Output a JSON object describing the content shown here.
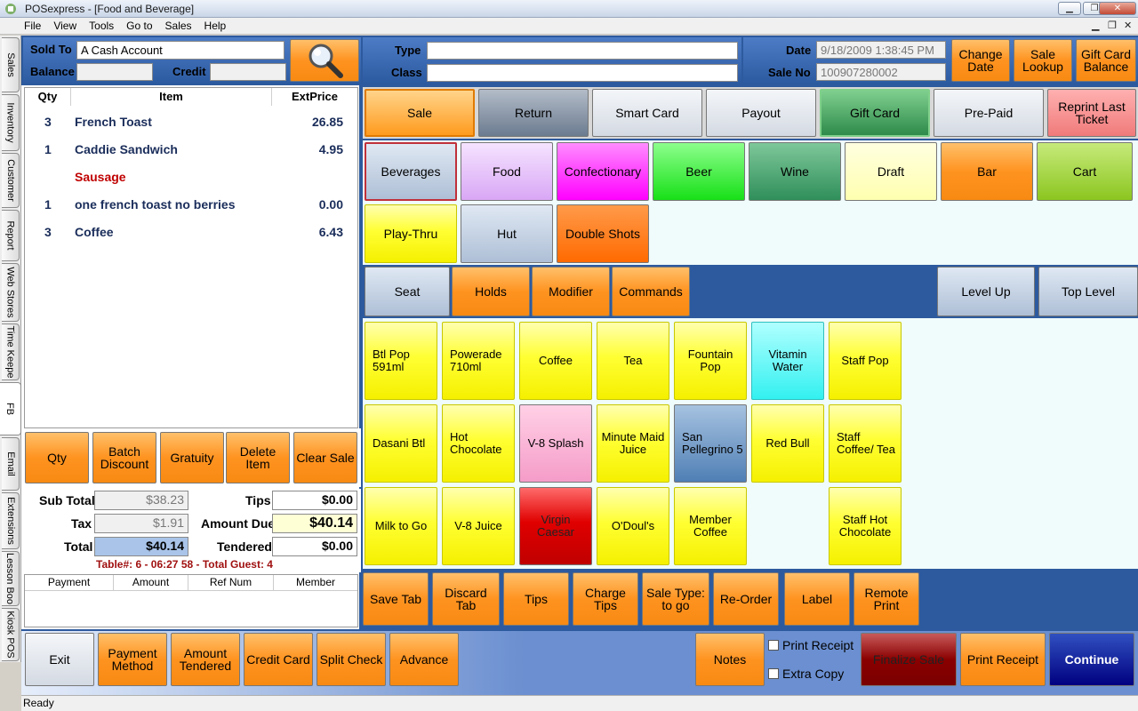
{
  "window": {
    "title": "POSexpress - [Food and Beverage]",
    "status": "Ready"
  },
  "menu": [
    "File",
    "View",
    "Tools",
    "Go to",
    "Sales",
    "Help"
  ],
  "side_tabs": [
    "Sales",
    "Inventory",
    "Customer",
    "Report",
    "Web Stores",
    "Time Keepe",
    "FB",
    "Email",
    "Extensions",
    "Lesson Boo",
    "Kiosk POS"
  ],
  "header": {
    "sold_to_label": "Sold To",
    "sold_to_value": "A Cash Account",
    "balance_label": "Balance",
    "balance_value": "",
    "credit_label": "Credit",
    "credit_value": "",
    "type_label": "Type",
    "type_value": "",
    "class_label": "Class",
    "class_value": "",
    "date_label": "Date",
    "date_value": "9/18/2009 1:38:45 PM",
    "saleno_label": "Sale No",
    "saleno_value": "100907280002",
    "change_date": "Change Date",
    "sale_lookup": "Sale Lookup",
    "gift_card_balance": "Gift Card Balance"
  },
  "order": {
    "columns": {
      "qty": "Qty",
      "item": "Item",
      "extprice": "ExtPrice"
    },
    "rows": [
      {
        "qty": "3",
        "item": "French Toast",
        "price": "26.85"
      },
      {
        "qty": "1",
        "item": "Caddie Sandwich",
        "price": "4.95"
      },
      {
        "qty": "",
        "item": "Sausage",
        "price": ""
      },
      {
        "qty": "1",
        "item": "one french toast no berries",
        "price": "0.00"
      },
      {
        "qty": "3",
        "item": "Coffee",
        "price": "6.43"
      }
    ]
  },
  "order_buttons": [
    "Qty",
    "Batch Discount",
    "Gratuity",
    "Delete Item",
    "Clear Sale"
  ],
  "totals": {
    "subtotal_label": "Sub Total",
    "subtotal": "$38.23",
    "tax_label": "Tax",
    "tax": "$1.91",
    "total_label": "Total",
    "total": "$40.14",
    "tips_label": "Tips",
    "tips": "$0.00",
    "amount_due_label": "Amount Due",
    "amount_due": "$40.14",
    "tendered_label": "Tendered",
    "tendered": "$0.00",
    "table_info": "Table#: 6 - 06:27 58 - Total Guest: 4"
  },
  "payment_columns": [
    "Payment",
    "Amount",
    "Ref Num",
    "Member"
  ],
  "sale_types": [
    "Sale",
    "Return",
    "Smart Card",
    "Payout",
    "Gift Card",
    "Pre-Paid",
    "Reprint Last Ticket"
  ],
  "categories": [
    "Beverages",
    "Food",
    "Confectionary",
    "Beer",
    "Wine",
    "Draft",
    "Bar",
    "Cart",
    "Play-Thru",
    "Hut",
    "Double Shots"
  ],
  "nav": {
    "seat": "Seat",
    "holds": "Holds",
    "modifier": "Modifier",
    "commands": "Commands",
    "level_up": "Level Up",
    "top_level": "Top Level"
  },
  "items": [
    "Btl Pop 591ml",
    "Powerade 710ml",
    "Coffee",
    "Tea",
    "Fountain Pop",
    "Vitamin Water",
    "Staff Pop",
    "Dasani Btl",
    "Hot Chocolate",
    "V-8 Splash",
    "Minute Maid Juice",
    "San Pellegrino 5",
    "Red Bull",
    "Staff Coffee/ Tea",
    "Milk to Go",
    "V-8 Juice",
    "Virgin Caesar",
    "O'Doul's",
    "Member Coffee",
    "Staff Hot Chocolate"
  ],
  "tab_buttons": [
    "Save Tab",
    "Discard Tab",
    "Tips",
    "Charge Tips",
    "Sale Type: to go",
    "Re-Order",
    "Label",
    "Remote Print"
  ],
  "bottom": {
    "exit": "Exit",
    "payment_method": "Payment Method",
    "amount_tendered": "Amount Tendered",
    "credit_card": "Credit Card",
    "split_check": "Split Check",
    "advance": "Advance",
    "notes": "Notes",
    "print_receipt_chk": "Print Receipt",
    "extra_copy_chk": "Extra Copy",
    "finalize_sale": "Finalize Sale",
    "print_receipt": "Print Receipt",
    "continue": "Continue"
  },
  "colors": {
    "accent_orange": "#ff9320",
    "panel_blue": "#2d5a9e",
    "item_yellow": "#ffff33"
  }
}
